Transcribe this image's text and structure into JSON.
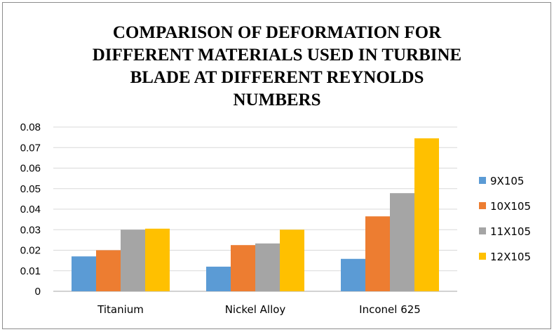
{
  "chart_data": {
    "type": "bar",
    "title_lines": [
      "COMPARISON OF DEFORMATION FOR",
      "DIFFERENT MATERIALS USED IN TURBINE",
      "BLADE AT DIFFERENT REYNOLDS",
      "NUMBERS"
    ],
    "xlabel": "",
    "ylabel": "",
    "ylim": [
      0,
      0.08
    ],
    "yticks": [
      "0",
      "0.01",
      "0.02",
      "0.03",
      "0.04",
      "0.05",
      "0.06",
      "0.07",
      "0.08"
    ],
    "grid": true,
    "legend_position": "right",
    "categories": [
      "Titanium",
      "Nickel Alloy",
      "Inconel 625"
    ],
    "series": [
      {
        "name": "9X105",
        "color": "#5B9BD5",
        "values": [
          0.017,
          0.012,
          0.0158
        ]
      },
      {
        "name": "10X105",
        "color": "#ED7D31",
        "values": [
          0.02,
          0.0225,
          0.0365
        ]
      },
      {
        "name": "11X105",
        "color": "#A5A5A5",
        "values": [
          0.03,
          0.0233,
          0.0478
        ]
      },
      {
        "name": "12X105",
        "color": "#FFC000",
        "values": [
          0.0305,
          0.03,
          0.0745
        ]
      }
    ]
  }
}
